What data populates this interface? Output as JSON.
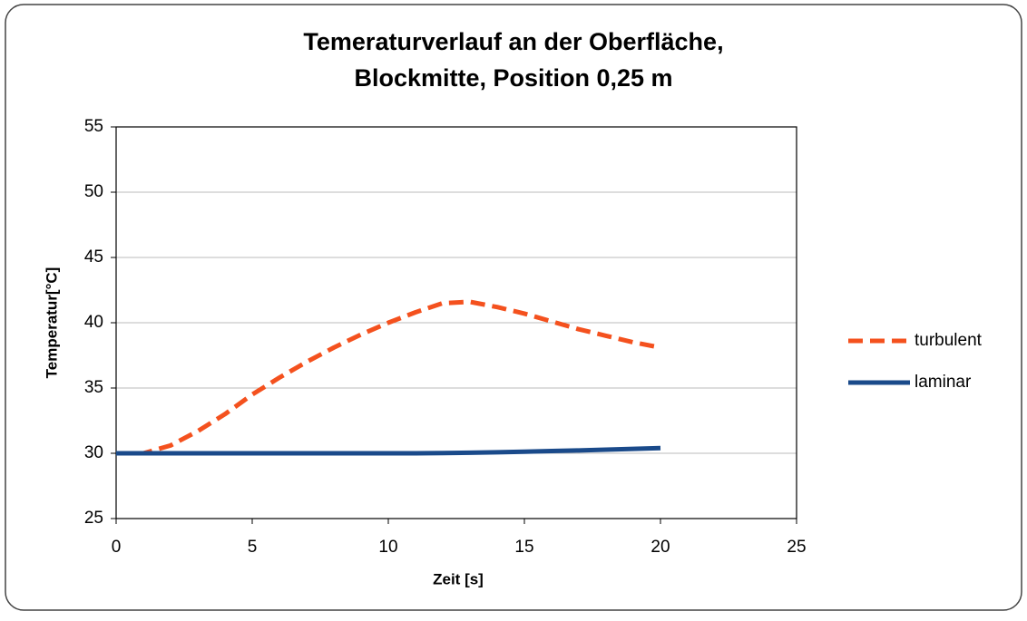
{
  "chart_data": {
    "type": "line",
    "title": "Temeraturverlauf an der Oberfläche,",
    "subtitle": "Blockmitte, Position 0,25 m",
    "xlabel": "Zeit [s]",
    "ylabel": "Temperatur[°C]",
    "x": [
      0,
      1,
      2,
      3,
      4,
      5,
      6,
      7,
      8,
      9,
      10,
      11,
      12,
      13,
      14,
      15,
      16,
      17,
      18,
      19,
      20
    ],
    "series": [
      {
        "name": "turbulent",
        "color": "#f4511e",
        "dashed": true,
        "values": [
          30,
          30,
          30.6,
          31.7,
          33,
          34.5,
          35.8,
          37,
          38.1,
          39.1,
          40,
          40.8,
          41.5,
          41.6,
          41.2,
          40.7,
          40.1,
          39.5,
          39,
          38.5,
          38.1
        ]
      },
      {
        "name": "laminar",
        "color": "#1a4a8a",
        "dashed": false,
        "values": [
          30,
          30,
          30,
          30,
          30,
          30,
          30,
          30,
          30,
          30,
          30,
          30,
          30.02,
          30.04,
          30.08,
          30.12,
          30.17,
          30.22,
          30.28,
          30.34,
          30.4
        ]
      }
    ],
    "xlim": [
      0,
      25
    ],
    "xticks": [
      0,
      5,
      10,
      15,
      20,
      25
    ],
    "ylim": [
      25,
      55
    ],
    "yticks": [
      25,
      30,
      35,
      40,
      45,
      50,
      55
    ],
    "grid": true,
    "legend": "right"
  }
}
